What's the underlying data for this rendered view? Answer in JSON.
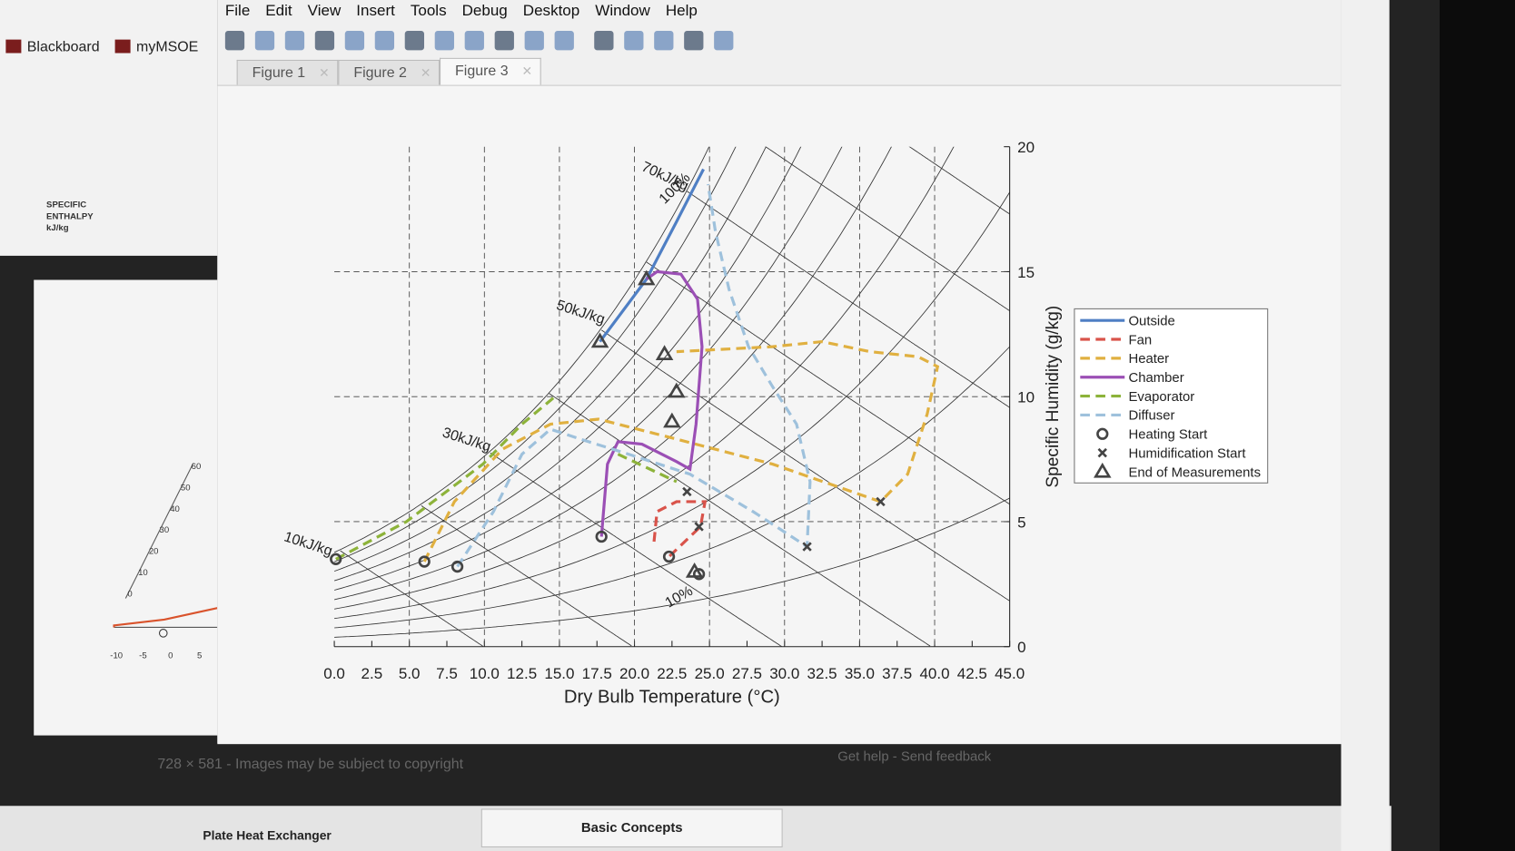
{
  "browser": {
    "bookmarks": [
      "Blackboard",
      "myMSOE"
    ]
  },
  "menu": [
    "File",
    "Edit",
    "View",
    "Insert",
    "Tools",
    "Debug",
    "Desktop",
    "Window",
    "Help"
  ],
  "tabs": [
    "Figure 1",
    "Figure 2",
    "Figure 3"
  ],
  "thumbnail": {
    "title": "SPECIFIC ENTHALPY kJ/kg",
    "scale": [
      "60",
      "50",
      "40",
      "30",
      "20",
      "10",
      "0"
    ],
    "axis": [
      "-10",
      "-5",
      "0",
      "5"
    ]
  },
  "chart_data": {
    "type": "line",
    "xlabel": "Dry Bulb Temperature (°C)",
    "ylabel": "Specific Humidity (g/kg)",
    "xlim": [
      0,
      45
    ],
    "ylim": [
      0,
      20
    ],
    "xticks": [
      {
        "value": 0,
        "label": "0.0"
      },
      2.5,
      {
        "value": 5,
        "label": "5.0"
      },
      7.5,
      {
        "value": 10,
        "label": "10.0"
      },
      12.5,
      {
        "value": 15,
        "label": "15.0"
      },
      17.5,
      {
        "value": 20,
        "label": "20.0"
      },
      22.5,
      {
        "value": 25,
        "label": "25.0"
      },
      27.5,
      {
        "value": 30,
        "label": "30.0"
      },
      32.5,
      {
        "value": 35,
        "label": "35.0"
      },
      37.5,
      {
        "value": 40,
        "label": "40.0"
      },
      42.5,
      {
        "value": 45,
        "label": "45.0"
      }
    ],
    "yticks": [
      0,
      5,
      10,
      15,
      20
    ],
    "grid": true,
    "legend": "right",
    "annotations": [
      "70kJ/kg",
      "100%",
      "50kJ/kg",
      "30kJ/kg",
      "10kJ/kg",
      "10%"
    ],
    "series": [
      {
        "name": "Outside",
        "color": "#4f7fc4",
        "style": "solid",
        "x": [
          17.7,
          20.8,
          22.8,
          24.6
        ],
        "values": [
          12.2,
          14.7,
          17.0,
          19.1
        ]
      },
      {
        "name": "Fan",
        "color": "#d9534a",
        "style": "dashed",
        "x": [
          21.3,
          21.5,
          22.8,
          24.7,
          24.4,
          22.3
        ],
        "values": [
          4.2,
          5.4,
          5.8,
          5.8,
          4.8,
          3.6
        ]
      },
      {
        "name": "Heater",
        "color": "#e0b040",
        "style": "dashed",
        "x": [
          6.0,
          8.0,
          11.2,
          14.4,
          17.6,
          22.8,
          29.2,
          36.4,
          38.2,
          39.5,
          40.2,
          38.9,
          35.7,
          32.5,
          29.2,
          26.0,
          22.8
        ],
        "values": [
          3.4,
          5.8,
          7.9,
          8.9,
          9.1,
          8.3,
          7.3,
          5.8,
          6.9,
          9.3,
          11.2,
          11.6,
          11.8,
          12.2,
          12.0,
          11.9,
          11.8
        ]
      },
      {
        "name": "Chamber",
        "color": "#9b4fb5",
        "style": "solid",
        "x": [
          17.8,
          18.2,
          18.9,
          20.5,
          22.8,
          23.7,
          24.1,
          24.5,
          24.2,
          23.1,
          21.5,
          20.8
        ],
        "values": [
          4.4,
          7.3,
          8.2,
          8.1,
          7.4,
          7.1,
          8.9,
          12.0,
          13.9,
          14.9,
          15.0,
          14.7
        ]
      },
      {
        "name": "Evaporator",
        "color": "#8db33a",
        "style": "dashed",
        "x": [
          0.1,
          4.8,
          9.9,
          12.5,
          14.7,
          null,
          18.9,
          22.8
        ],
        "values": [
          3.5,
          5.0,
          7.3,
          8.9,
          10.0,
          null,
          7.7,
          6.6
        ]
      },
      {
        "name": "Diffuser",
        "color": "#9ec1dc",
        "style": "dashed",
        "x": [
          8.2,
          10.6,
          12.5,
          14.4,
          16.4,
          19.6,
          23.7,
          27.9,
          31.5,
          31.7,
          30.8,
          29.2,
          27.6,
          26.3,
          25.4,
          24.9
        ],
        "values": [
          3.2,
          5.4,
          7.7,
          8.7,
          8.3,
          7.7,
          6.9,
          5.4,
          4.0,
          6.6,
          8.9,
          10.4,
          12.0,
          14.3,
          16.6,
          18.5
        ]
      },
      {
        "name": "Heating Start",
        "color": "#444444",
        "marker": "circle",
        "x": [
          0.1,
          6.0,
          8.2,
          17.8,
          22.3,
          24.3
        ],
        "values": [
          3.5,
          3.4,
          3.2,
          4.4,
          3.6,
          2.9
        ]
      },
      {
        "name": "Humidification Start",
        "color": "#444444",
        "marker": "cross",
        "x": [
          23.5,
          24.3,
          31.5,
          36.4
        ],
        "values": [
          6.2,
          4.8,
          4.0,
          5.8
        ]
      },
      {
        "name": "End of Measurements",
        "color": "#444444",
        "marker": "triangle",
        "x": [
          20.8,
          17.7,
          22.0,
          22.8,
          22.5,
          24.0
        ],
        "values": [
          14.7,
          12.2,
          11.7,
          10.2,
          9.0,
          3.0
        ]
      }
    ]
  },
  "footer": {
    "note": "728 × 581 - Images may be subject to copyright",
    "links": "Get help - Send feedback"
  },
  "bottom": {
    "left": "Plate Heat Exchanger",
    "center": "Basic Concepts"
  }
}
